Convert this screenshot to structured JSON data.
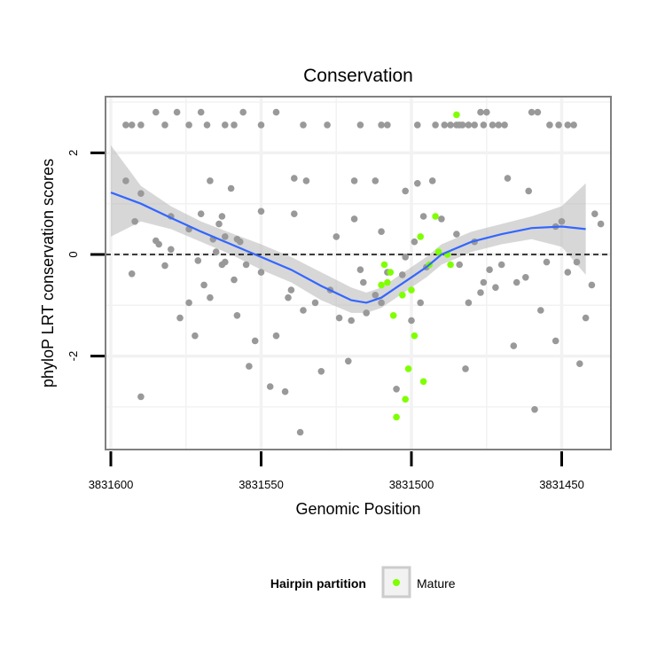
{
  "chart_data": {
    "type": "scatter",
    "title": "Conservation",
    "xlabel": "Genomic Position",
    "ylabel": "phyloP LRT conservation scores",
    "x_reversed": true,
    "xlim": [
      3831605,
      3831435
    ],
    "ylim": [
      -3.85,
      3.1
    ],
    "x_ticks": [
      3831600,
      3831550,
      3831500,
      3831450
    ],
    "x_tick_labels": [
      "3831600",
      "3831550",
      "3831500",
      "3831450"
    ],
    "y_ticks": [
      2,
      0,
      -2
    ],
    "y_tick_labels": [
      "2",
      "0",
      "-2"
    ],
    "grid": true,
    "reference_line": {
      "y": 0,
      "style": "dashed"
    },
    "legend": {
      "title": "Hairpin partition",
      "entries": [
        "Mature"
      ],
      "position": "bottom"
    },
    "colors": {
      "other": "#999999",
      "mature": "#7FFF00",
      "smooth": "#3366FF",
      "band": "#BDBDBD",
      "panel_border": "#808080",
      "grid": "#F2F2F2"
    },
    "series": [
      {
        "group": "other",
        "x": [
          3831595,
          3831593,
          3831590,
          3831585,
          3831584,
          3831582,
          3831580,
          3831577,
          3831574,
          3831572,
          3831571,
          3831570,
          3831569,
          3831567,
          3831567,
          3831564,
          3831563,
          3831562,
          3831559,
          3831558,
          3831557,
          3831555,
          3831554,
          3831552,
          3831550,
          3831547,
          3831542,
          3831537,
          3831536,
          3831532,
          3831530,
          3831527,
          3831524,
          3831521,
          3831520,
          3831519,
          3831517,
          3831516,
          3831515,
          3831512,
          3831510,
          3831508,
          3831505,
          3831503,
          3831502,
          3831500,
          3831499,
          3831497,
          3831495,
          3831490,
          3831485,
          3831484,
          3831482,
          3831481,
          3831479,
          3831477,
          3831476,
          3831474,
          3831472,
          3831470,
          3831468,
          3831466,
          3831465,
          3831462,
          3831459,
          3831457,
          3831455,
          3831452,
          3831450,
          3831448,
          3831445,
          3831444,
          3831442,
          3831440,
          3831439,
          3831437,
          3831461,
          3831452,
          3831563,
          3831580,
          3831566,
          3831560,
          3831525,
          3831510,
          3831498,
          3831493,
          3831539,
          3831535,
          3831590,
          3831592,
          3831574,
          3831562,
          3831545,
          3831541,
          3831540,
          3831558,
          3831565,
          3831539,
          3831550
        ],
        "y": [
          1.45,
          -0.38,
          1.2,
          0.27,
          0.2,
          -0.22,
          0.75,
          -1.25,
          -0.95,
          -1.6,
          -0.12,
          0.8,
          -0.6,
          1.45,
          -0.85,
          0.6,
          -0.2,
          0.35,
          -0.5,
          -1.2,
          0.25,
          -0.2,
          -2.2,
          -1.7,
          -0.35,
          -2.6,
          -2.7,
          -3.5,
          -1.1,
          -0.95,
          -2.3,
          -0.7,
          -1.25,
          -2.1,
          -1.3,
          0.7,
          -0.3,
          -0.55,
          -1.15,
          -0.8,
          0.45,
          -0.35,
          -2.65,
          -0.4,
          -0.05,
          -1.3,
          0.25,
          -0.95,
          -0.25,
          0.7,
          0.4,
          -0.2,
          -2.25,
          -0.95,
          0.25,
          -0.75,
          -0.55,
          -0.3,
          -0.65,
          -0.2,
          1.5,
          -1.8,
          -0.55,
          -0.45,
          -3.05,
          -1.1,
          -0.15,
          -1.7,
          0.65,
          -0.35,
          -0.15,
          -2.15,
          -1.25,
          -0.6,
          0.8,
          0.6,
          1.25,
          0.55,
          0.75,
          0.1,
          0.3,
          1.3,
          0.35,
          -0.95,
          1.4,
          1.45,
          1.5,
          1.45,
          -2.8,
          0.65,
          0.5,
          -0.15,
          -1.6,
          -0.85,
          -0.7,
          0.3,
          0.05,
          0.8,
          0.85
        ]
      },
      {
        "group": "other",
        "x": [
          3831595,
          3831593,
          3831590,
          3831585,
          3831582,
          3831578,
          3831574,
          3831570,
          3831568,
          3831562,
          3831559,
          3831556,
          3831550,
          3831545,
          3831536,
          3831528,
          3831519,
          3831517,
          3831512,
          3831510,
          3831508,
          3831502,
          3831498,
          3831496,
          3831492,
          3831489,
          3831487,
          3831485,
          3831483,
          3831481,
          3831479,
          3831477,
          3831475,
          3831473,
          3831471,
          3831469,
          3831460,
          3831458,
          3831454,
          3831451,
          3831448,
          3831446,
          3831476,
          3831484
        ],
        "y": [
          2.55,
          2.55,
          2.55,
          2.8,
          2.55,
          2.8,
          2.55,
          2.8,
          2.55,
          2.55,
          2.55,
          2.8,
          2.55,
          2.8,
          2.55,
          2.55,
          1.45,
          2.55,
          1.45,
          2.55,
          2.55,
          1.25,
          2.55,
          0.75,
          2.55,
          2.55,
          2.55,
          2.55,
          2.55,
          2.55,
          2.55,
          2.8,
          2.8,
          2.55,
          2.55,
          2.55,
          2.8,
          2.8,
          2.55,
          2.55,
          2.55,
          2.55,
          2.55,
          2.55
        ]
      },
      {
        "group": "Mature",
        "x": [
          3831510,
          3831509,
          3831508,
          3831507,
          3831506,
          3831505,
          3831503,
          3831502,
          3831501,
          3831500,
          3831499,
          3831497,
          3831496,
          3831494,
          3831492,
          3831491,
          3831488,
          3831487,
          3831485
        ],
        "y": [
          -0.6,
          -0.2,
          -0.55,
          -0.35,
          -1.2,
          -3.2,
          -0.8,
          -2.85,
          -2.25,
          -0.7,
          -1.6,
          0.35,
          -2.5,
          -0.2,
          0.75,
          0.05,
          0.0,
          -0.2,
          2.75
        ]
      }
    ],
    "smooth": {
      "x": [
        3831600,
        3831590,
        3831580,
        3831570,
        3831560,
        3831550,
        3831540,
        3831530,
        3831520,
        3831515,
        3831510,
        3831505,
        3831500,
        3831495,
        3831490,
        3831480,
        3831470,
        3831460,
        3831450,
        3831442
      ],
      "y": [
        1.22,
        1.0,
        0.72,
        0.45,
        0.2,
        -0.05,
        -0.3,
        -0.62,
        -0.9,
        -0.95,
        -0.85,
        -0.65,
        -0.45,
        -0.25,
        0.0,
        0.25,
        0.4,
        0.52,
        0.55,
        0.5
      ],
      "se_upper": [
        2.15,
        1.35,
        0.95,
        0.65,
        0.42,
        0.2,
        -0.05,
        -0.35,
        -0.65,
        -0.75,
        -0.65,
        -0.45,
        -0.25,
        -0.05,
        0.2,
        0.45,
        0.6,
        0.75,
        0.95,
        1.4
      ],
      "se_lower": [
        0.35,
        0.65,
        0.5,
        0.25,
        0.0,
        -0.3,
        -0.55,
        -0.9,
        -1.15,
        -1.15,
        -1.05,
        -0.85,
        -0.65,
        -0.45,
        -0.2,
        0.05,
        0.2,
        0.3,
        0.15,
        -0.4
      ]
    }
  }
}
